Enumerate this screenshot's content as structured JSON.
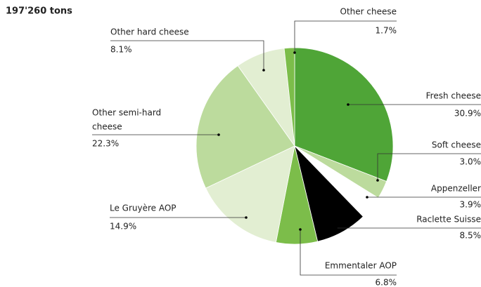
{
  "chart_data": {
    "type": "pie",
    "subtitle": "197'260 tons",
    "categories": [
      "Fresh cheese",
      "Soft cheese",
      "Appenzeller",
      "Raclette Suisse",
      "Emmentaler AOP",
      "Le Gruyère AOP",
      "Other semi-hard cheese",
      "Other hard cheese",
      "Other cheese"
    ],
    "values": [
      30.9,
      3.0,
      3.9,
      8.5,
      6.8,
      14.9,
      22.3,
      8.1,
      1.7
    ],
    "value_labels": [
      "30.9%",
      "3.0%",
      "3.9%",
      "8.5%",
      "6.8%",
      "14.9%",
      "22.3%",
      "8.1%",
      "1.7%"
    ],
    "colors": [
      "#4fa537",
      "#bcdb9d",
      "#ffffff",
      "#000000",
      "#7cbd4a",
      "#e2eed2",
      "#bcdb9d",
      "#e2eed2",
      "#7cbd4a"
    ]
  }
}
